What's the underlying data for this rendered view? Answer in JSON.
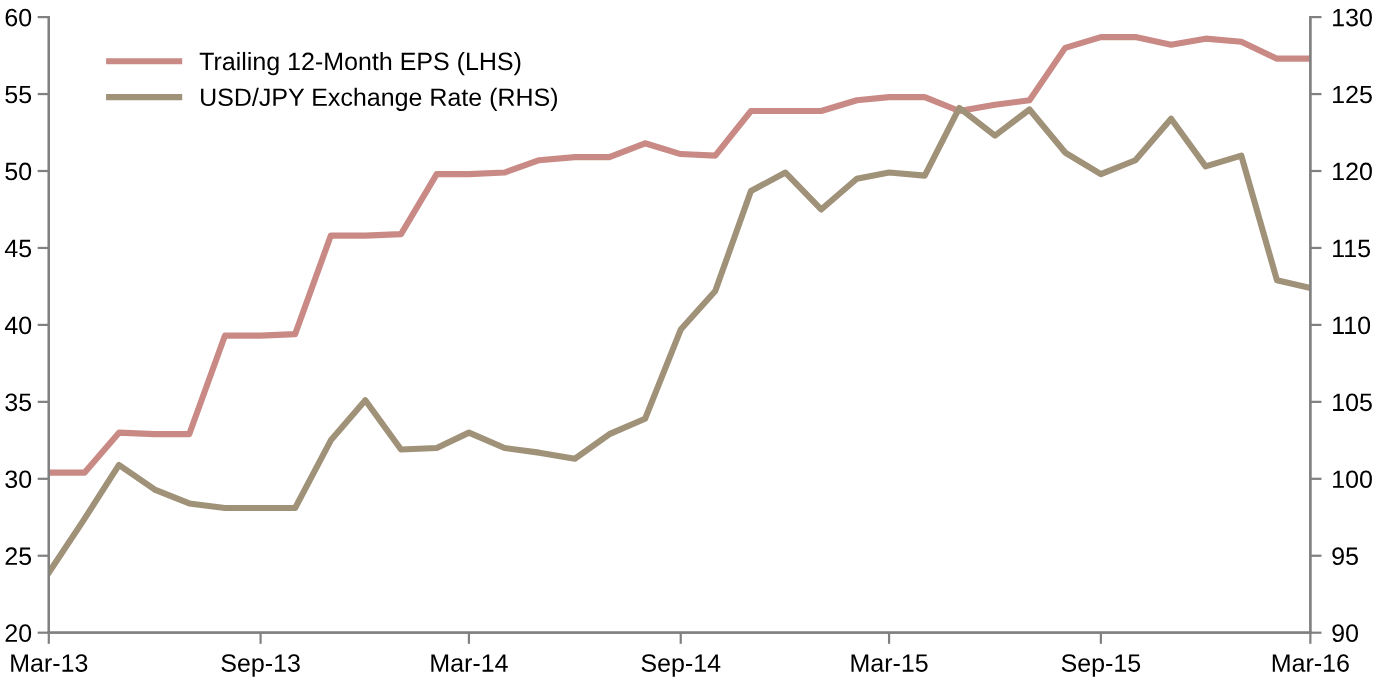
{
  "chart_data": {
    "type": "line",
    "legend": "top left",
    "grid": false,
    "line_style": "solid",
    "marker": "none",
    "x": [
      "2013-03",
      "2013-04",
      "2013-05",
      "2013-06",
      "2013-07",
      "2013-08",
      "2013-09",
      "2013-10",
      "2013-11",
      "2013-12",
      "2014-01",
      "2014-02",
      "2014-03",
      "2014-04",
      "2014-05",
      "2014-06",
      "2014-07",
      "2014-08",
      "2014-09",
      "2014-10",
      "2014-11",
      "2014-12",
      "2015-01",
      "2015-02",
      "2015-03",
      "2015-04",
      "2015-05",
      "2015-06",
      "2015-07",
      "2015-08",
      "2015-09",
      "2015-10",
      "2015-11",
      "2015-12",
      "2016-01",
      "2016-02",
      "2016-03"
    ],
    "series": [
      {
        "name": "Trailing 12-Month EPS (LHS)",
        "color": "#c98a85",
        "values": [
          30.4,
          30.4,
          33.0,
          32.9,
          32.9,
          39.3,
          39.3,
          39.4,
          45.8,
          45.8,
          45.9,
          49.8,
          49.8,
          49.9,
          50.7,
          50.9,
          50.9,
          51.8,
          51.1,
          51.0,
          53.9,
          53.9,
          53.9,
          54.6,
          54.8,
          54.8,
          53.9,
          54.3,
          54.6,
          58.0,
          58.7,
          58.7,
          58.2,
          58.6,
          58.4,
          57.3,
          57.3
        ]
      },
      {
        "name": "USD/JPY Exchange Rate (RHS)",
        "color": "#a09278",
        "axis": "y2",
        "values": [
          93.9,
          97.4,
          100.9,
          99.3,
          98.4,
          98.1,
          98.1,
          98.1,
          102.5,
          105.1,
          101.9,
          102.0,
          103.0,
          102.0,
          101.7,
          101.3,
          102.9,
          103.9,
          109.7,
          112.2,
          118.7,
          119.9,
          117.5,
          119.5,
          119.9,
          119.7,
          124.1,
          122.3,
          124.0,
          121.2,
          119.8,
          120.7,
          123.4,
          120.3,
          121.0,
          112.9,
          112.4
        ]
      }
    ],
    "xlim": [
      "2013-03",
      "2016-03"
    ],
    "xticks": [
      {
        "value": "2013-03",
        "label": "Mar-13"
      },
      {
        "value": "2013-09",
        "label": "Sep-13"
      },
      {
        "value": "2014-03",
        "label": "Mar-14"
      },
      {
        "value": "2014-09",
        "label": "Sep-14"
      },
      {
        "value": "2015-03",
        "label": "Mar-15"
      },
      {
        "value": "2015-09",
        "label": "Sep-15"
      },
      {
        "value": "2016-03",
        "label": "Mar-16"
      }
    ],
    "ylim": [
      20,
      60
    ],
    "yticks": [
      20,
      25,
      30,
      35,
      40,
      45,
      50,
      55,
      60
    ],
    "y2lim": [
      90,
      130
    ],
    "y2ticks": [
      90,
      95,
      100,
      105,
      110,
      115,
      120,
      125,
      130
    ]
  }
}
